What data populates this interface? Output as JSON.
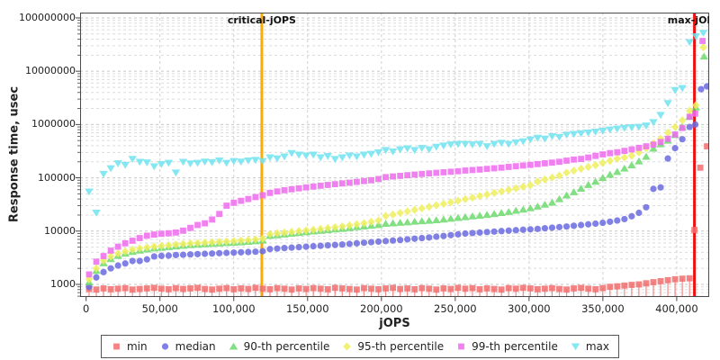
{
  "chart_data": {
    "type": "scatter",
    "title": "",
    "xlabel": "jOPS",
    "ylabel": "Response time, usec",
    "x_axis": {
      "ticks": [
        0,
        50000,
        100000,
        150000,
        200000,
        250000,
        300000,
        350000,
        400000
      ],
      "labels": [
        "0",
        "50,000",
        "100,000",
        "150,000",
        "200,000",
        "250,000",
        "300,000",
        "350,000",
        "400,000"
      ]
    },
    "y_axis": {
      "scale": "log",
      "ticks": [
        1000,
        10000,
        100000,
        1000000,
        10000000,
        100000000
      ],
      "labels": [
        "1000",
        "10000",
        "100000",
        "1000000",
        "10000000",
        "100000000"
      ]
    },
    "xlim": [
      -4083,
      422000
    ],
    "ylim": [
      580,
      126000000
    ],
    "grid": true,
    "legend_position": "bottom",
    "annotations": [
      {
        "label": "critical-jOPS",
        "x": 119000,
        "color": "#FFAC00"
      },
      {
        "label": "max-jOPS",
        "x": 412000,
        "color": "#EE1111"
      }
    ],
    "x": [
      2000,
      6900,
      11800,
      16700,
      21600,
      26500,
      31400,
      36300,
      41200,
      46100,
      51000,
      55900,
      60800,
      65700,
      70600,
      75500,
      80400,
      85300,
      90200,
      95100,
      100000,
      104900,
      109800,
      114700,
      119600,
      124500,
      129400,
      134300,
      139200,
      144100,
      149000,
      153900,
      158800,
      163700,
      168600,
      173500,
      178400,
      183300,
      188200,
      193100,
      198000,
      202900,
      207800,
      212700,
      217600,
      222500,
      227400,
      232300,
      237200,
      242100,
      247000,
      251900,
      256800,
      261700,
      266600,
      271500,
      276400,
      281300,
      286200,
      291100,
      296000,
      300900,
      305800,
      310700,
      315600,
      320500,
      325400,
      330300,
      335200,
      340100,
      345000,
      349900,
      354800,
      359700,
      364600,
      369500,
      374400,
      379300,
      384200,
      389100,
      394000,
      398900,
      403800,
      408700
    ],
    "series": [
      {
        "name": "min",
        "marker": "square",
        "color": "#F26D6D",
        "drop_line": true,
        "values": [
          820,
          800,
          840,
          810,
          830,
          850,
          800,
          820,
          840,
          860,
          830,
          810,
          850,
          820,
          840,
          860,
          820,
          800,
          830,
          850,
          810,
          840,
          820,
          860,
          830,
          810,
          850,
          830,
          800,
          840,
          820,
          850,
          830,
          810,
          860,
          840,
          820,
          800,
          850,
          830,
          810,
          840,
          860,
          820,
          840,
          810,
          850,
          830,
          800,
          840,
          820,
          860,
          830,
          850,
          810,
          840,
          820,
          800,
          850,
          830,
          860,
          840,
          810,
          830,
          850,
          820,
          800,
          840,
          860,
          830,
          810,
          850,
          900,
          920,
          950,
          980,
          1000,
          1050,
          1100,
          1150,
          1200,
          1250,
          1280,
          1300
        ],
        "extra_points": [
          [
            412000,
            10500
          ],
          [
            416000,
            155000
          ],
          [
            420500,
            390000
          ]
        ]
      },
      {
        "name": "median",
        "marker": "circle",
        "color": "#6A6AE0",
        "drop_line": false,
        "values": [
          900,
          1350,
          1700,
          2000,
          2260,
          2470,
          2750,
          2750,
          2940,
          3340,
          3430,
          3470,
          3560,
          3600,
          3650,
          3700,
          3750,
          3800,
          3850,
          3900,
          3950,
          4000,
          4050,
          4100,
          4200,
          4600,
          4700,
          4800,
          4900,
          5000,
          5100,
          5200,
          5300,
          5400,
          5500,
          5600,
          5750,
          5900,
          6050,
          6200,
          6350,
          6500,
          6650,
          6800,
          7000,
          7200,
          7400,
          7600,
          7850,
          8100,
          8400,
          8700,
          9000,
          9200,
          9400,
          9600,
          9800,
          10000,
          10200,
          10400,
          10600,
          10800,
          11000,
          11300,
          11600,
          11900,
          12200,
          12600,
          13000,
          13400,
          13800,
          14300,
          15000,
          15800,
          16800,
          19000,
          22000,
          28000,
          62000,
          66000,
          230000,
          360000,
          530000,
          900000
        ],
        "extra_points": [
          [
            412600,
            1000000
          ],
          [
            416500,
            4600000
          ],
          [
            420500,
            5200000
          ]
        ]
      },
      {
        "name": "90-th percentile",
        "marker": "triangle-up",
        "color": "#6CD96C",
        "drop_line": false,
        "values": [
          1100,
          1800,
          2500,
          3000,
          3450,
          3800,
          4100,
          4350,
          4550,
          4750,
          4900,
          5050,
          5200,
          5350,
          5500,
          5600,
          5700,
          5800,
          5900,
          6000,
          6100,
          6200,
          6350,
          6500,
          6700,
          8200,
          8400,
          8700,
          9000,
          9300,
          9600,
          9900,
          10200,
          10500,
          10800,
          11100,
          11500,
          11900,
          12300,
          12700,
          13100,
          13800,
          14100,
          14400,
          14700,
          15100,
          15400,
          15700,
          16100,
          16600,
          17200,
          17800,
          18400,
          19000,
          19600,
          20300,
          21100,
          22000,
          23000,
          24200,
          25500,
          27000,
          29000,
          31500,
          34500,
          40000,
          47000,
          54000,
          63000,
          74000,
          85000,
          100000,
          115000,
          130000,
          150000,
          173000,
          205000,
          250000,
          355000,
          430000,
          500000,
          640000,
          900000,
          1400000
        ],
        "extra_points": [
          [
            413000,
            2100000
          ],
          [
            418500,
            19000000
          ]
        ]
      },
      {
        "name": "95-th percentile",
        "marker": "diamond",
        "color": "#EFEF5E",
        "drop_line": false,
        "values": [
          1250,
          2000,
          2800,
          3350,
          3800,
          4150,
          4500,
          4750,
          4950,
          5150,
          5300,
          5450,
          5600,
          5750,
          5900,
          6000,
          6100,
          6200,
          6300,
          6400,
          6500,
          6650,
          6800,
          7000,
          7200,
          8800,
          9100,
          9400,
          9700,
          10000,
          10300,
          10600,
          11000,
          11400,
          11800,
          12300,
          12800,
          13400,
          14100,
          14900,
          15800,
          19200,
          20500,
          21900,
          23400,
          25000,
          26700,
          28500,
          30500,
          32500,
          34800,
          37200,
          39800,
          42500,
          45400,
          48600,
          52000,
          55600,
          59400,
          63500,
          68000,
          72700,
          85000,
          93000,
          101000,
          110000,
          125000,
          136000,
          148000,
          160000,
          173000,
          190000,
          208000,
          228000,
          240000,
          260000,
          300000,
          360000,
          440000,
          540000,
          700000,
          900000,
          1200000,
          1800000
        ],
        "extra_points": [
          [
            413000,
            2300000
          ],
          [
            418000,
            28000000
          ]
        ]
      },
      {
        "name": "99-th percentile",
        "marker": "square",
        "color": "#EF6AEF",
        "drop_line": false,
        "values": [
          1540,
          2670,
          3400,
          4300,
          5100,
          5900,
          6600,
          7400,
          8200,
          8600,
          8900,
          9100,
          9400,
          10200,
          11500,
          13000,
          14000,
          16500,
          21000,
          30000,
          34000,
          37000,
          40000,
          43500,
          47000,
          52000,
          55500,
          58500,
          61000,
          63500,
          66000,
          68500,
          71000,
          73500,
          76000,
          78500,
          81000,
          84000,
          87000,
          90000,
          95000,
          103000,
          106000,
          109000,
          112000,
          115000,
          118000,
          121000,
          124000,
          127000,
          130000,
          133000,
          137000,
          140000,
          143000,
          147000,
          151000,
          155000,
          160000,
          165000,
          170000,
          175000,
          181000,
          187000,
          193000,
          200000,
          210000,
          220000,
          226000,
          240000,
          258000,
          275000,
          290000,
          302000,
          320000,
          341000,
          365000,
          390000,
          420000,
          470000,
          540000,
          650000,
          860000,
          1400000
        ],
        "extra_points": [
          [
            412500,
            1600000
          ],
          [
            417500,
            37000000
          ]
        ]
      },
      {
        "name": "max",
        "marker": "triangle-down",
        "color": "#6FE3EF",
        "drop_line": false,
        "values": [
          55000,
          22000,
          118000,
          150000,
          186000,
          174000,
          225000,
          198000,
          193000,
          163000,
          180000,
          190000,
          125000,
          198000,
          185000,
          190000,
          200000,
          195000,
          210000,
          190000,
          205000,
          200000,
          210000,
          215000,
          205000,
          240000,
          230000,
          250000,
          290000,
          270000,
          260000,
          270000,
          240000,
          255000,
          224000,
          240000,
          260000,
          250000,
          270000,
          280000,
          300000,
          330000,
          310000,
          340000,
          355000,
          330000,
          360000,
          340000,
          380000,
          400000,
          420000,
          430000,
          430000,
          420000,
          430000,
          390000,
          430000,
          450000,
          430000,
          460000,
          480000,
          520000,
          560000,
          540000,
          600000,
          580000,
          640000,
          660000,
          680000,
          700000,
          730000,
          760000,
          800000,
          830000,
          860000,
          880000,
          900000,
          950000,
          1100000,
          1500000,
          2500000,
          4400000,
          4800000,
          35000000
        ],
        "extra_points": [
          [
            413000,
            45000000
          ],
          [
            418000,
            52000000
          ]
        ]
      }
    ]
  }
}
